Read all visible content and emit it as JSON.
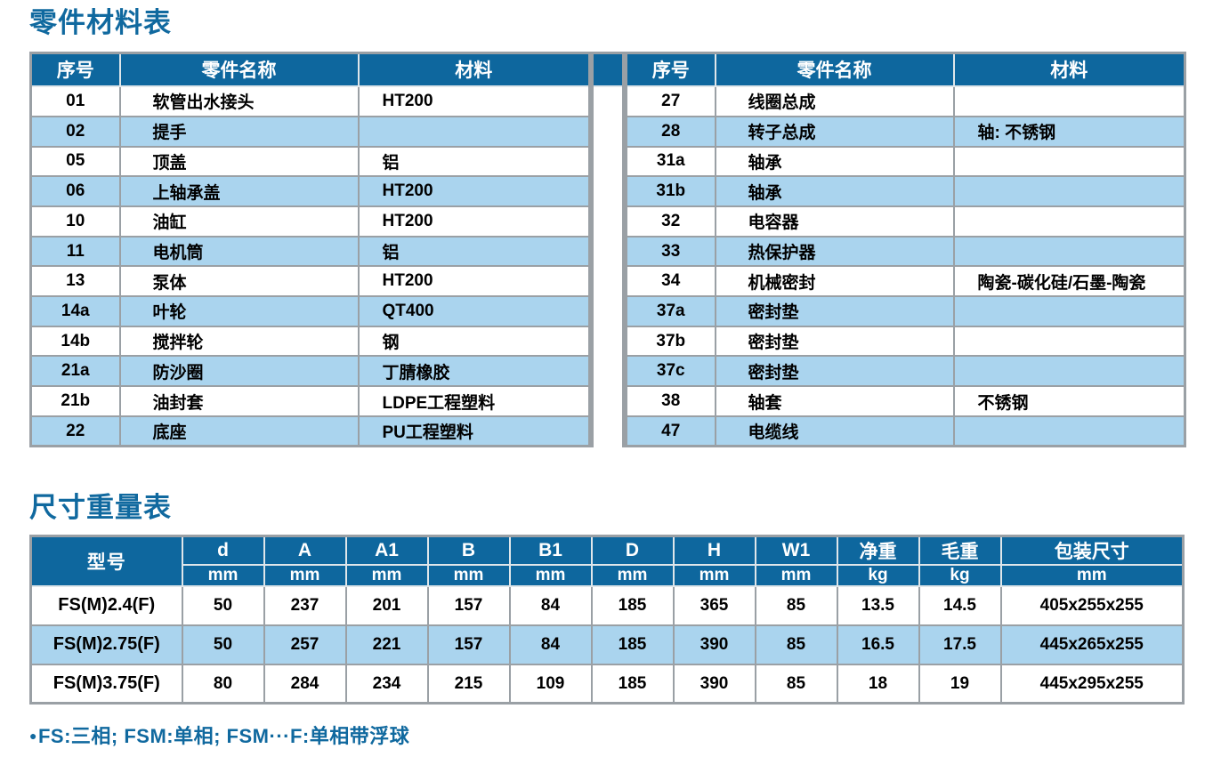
{
  "page": {
    "section1_title": "零件材料表",
    "section2_title": "尺寸重量表"
  },
  "note": {
    "bullet": "●",
    "text": "FS:三相; FSM:单相; FSM···F:单相带浮球"
  },
  "parts_table": {
    "headers": [
      "序号",
      "零件名称",
      "材料"
    ],
    "left_rows": [
      [
        "01",
        "软管出水接头",
        "HT200"
      ],
      [
        "02",
        "提手",
        ""
      ],
      [
        "05",
        "顶盖",
        "铝"
      ],
      [
        "06",
        "上轴承盖",
        "HT200"
      ],
      [
        "10",
        "油缸",
        "HT200"
      ],
      [
        "11",
        "电机筒",
        "铝"
      ],
      [
        "13",
        "泵体",
        "HT200"
      ],
      [
        "14a",
        "叶轮",
        "QT400"
      ],
      [
        "14b",
        "搅拌轮",
        "钢"
      ],
      [
        "21a",
        "防沙圈",
        "丁腈橡胶"
      ],
      [
        "21b",
        "油封套",
        "LDPE工程塑料"
      ],
      [
        "22",
        "底座",
        "PU工程塑料"
      ]
    ],
    "right_rows": [
      [
        "27",
        "线圈总成",
        ""
      ],
      [
        "28",
        "转子总成",
        "轴: 不锈钢"
      ],
      [
        "31a",
        "轴承",
        ""
      ],
      [
        "31b",
        "轴承",
        ""
      ],
      [
        "32",
        "电容器",
        ""
      ],
      [
        "33",
        "热保护器",
        ""
      ],
      [
        "34",
        "机械密封",
        "陶瓷-碳化硅/石墨-陶瓷"
      ],
      [
        "37a",
        "密封垫",
        ""
      ],
      [
        "37b",
        "密封垫",
        ""
      ],
      [
        "37c",
        "密封垫",
        ""
      ],
      [
        "38",
        "轴套",
        "不锈钢"
      ],
      [
        "47",
        "电缆线",
        ""
      ]
    ]
  },
  "size_table": {
    "model_header": "型号",
    "columns": [
      {
        "label": "d",
        "unit": "mm"
      },
      {
        "label": "A",
        "unit": "mm"
      },
      {
        "label": "A1",
        "unit": "mm"
      },
      {
        "label": "B",
        "unit": "mm"
      },
      {
        "label": "B1",
        "unit": "mm"
      },
      {
        "label": "D",
        "unit": "mm"
      },
      {
        "label": "H",
        "unit": "mm"
      },
      {
        "label": "W1",
        "unit": "mm"
      },
      {
        "label": "净重",
        "unit": "kg"
      },
      {
        "label": "毛重",
        "unit": "kg"
      },
      {
        "label": "包装尺寸",
        "unit": "mm"
      }
    ],
    "rows": [
      {
        "model": "FS(M)2.4(F)",
        "values": [
          "50",
          "237",
          "201",
          "157",
          "84",
          "185",
          "365",
          "85",
          "13.5",
          "14.5",
          "405x255x255"
        ]
      },
      {
        "model": "FS(M)2.75(F)",
        "values": [
          "50",
          "257",
          "221",
          "157",
          "84",
          "185",
          "390",
          "85",
          "16.5",
          "17.5",
          "445x265x255"
        ]
      },
      {
        "model": "FS(M)3.75(F)",
        "values": [
          "80",
          "284",
          "234",
          "215",
          "109",
          "185",
          "390",
          "85",
          "18",
          "19",
          "445x295x255"
        ]
      }
    ]
  },
  "colors": {
    "header_blue": "#0e679e",
    "stripe_blue": "#aad4ee",
    "accent_blue": "#10699f",
    "border_gray": "#9aa0a5"
  }
}
